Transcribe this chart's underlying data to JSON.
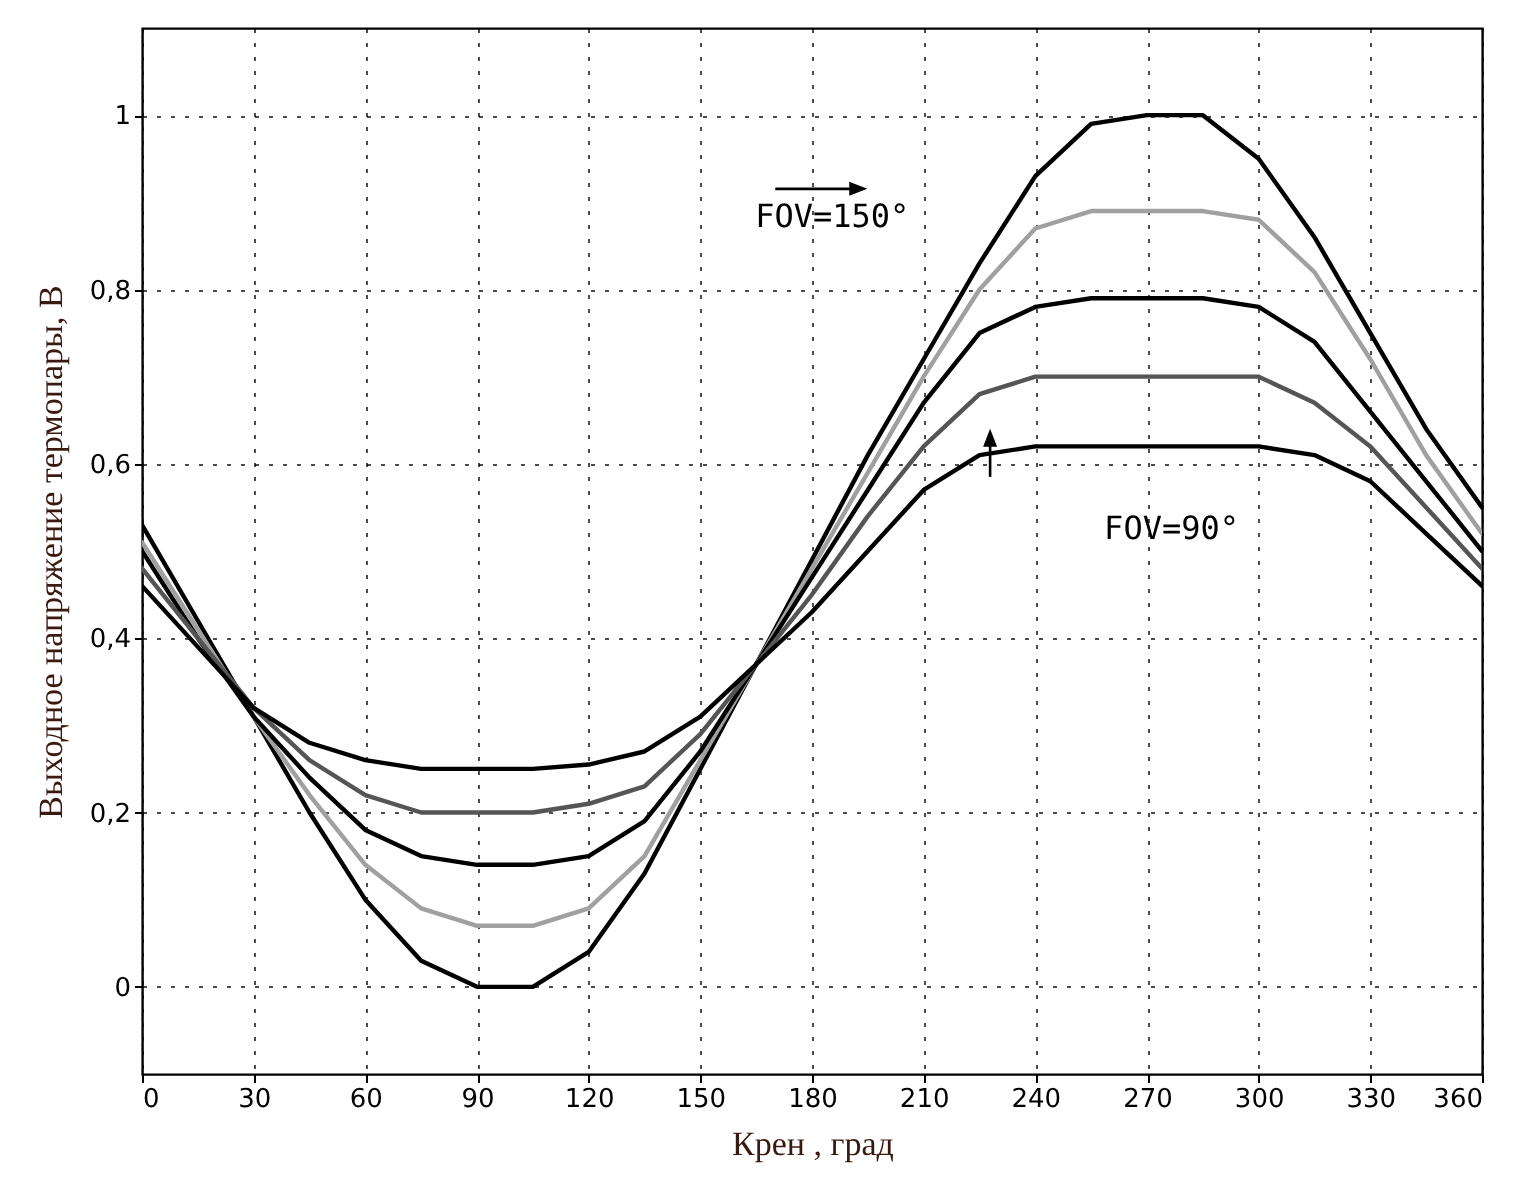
{
  "chart_data": {
    "type": "line",
    "xlabel": "Крен , град",
    "ylabel": "Выходное напряжение термопары, В",
    "x": [
      0,
      15,
      30,
      45,
      60,
      75,
      90,
      105,
      120,
      135,
      150,
      165,
      180,
      195,
      210,
      225,
      240,
      255,
      270,
      285,
      300,
      315,
      330,
      345,
      360
    ],
    "series": [
      {
        "color": "#000000",
        "values": [
          0.53,
          0.42,
          0.31,
          0.2,
          0.1,
          0.03,
          0.0,
          0.0,
          0.04,
          0.13,
          0.25,
          0.37,
          0.49,
          0.61,
          0.72,
          0.83,
          0.93,
          0.99,
          1.0,
          1.0,
          0.95,
          0.86,
          0.75,
          0.64,
          0.55
        ]
      },
      {
        "color": "#a0a0a0",
        "values": [
          0.51,
          0.41,
          0.31,
          0.22,
          0.14,
          0.09,
          0.07,
          0.07,
          0.09,
          0.15,
          0.26,
          0.37,
          0.48,
          0.59,
          0.7,
          0.8,
          0.87,
          0.89,
          0.89,
          0.89,
          0.88,
          0.82,
          0.72,
          0.61,
          0.52
        ]
      },
      {
        "color": "#000000",
        "values": [
          0.5,
          0.4,
          0.31,
          0.24,
          0.18,
          0.15,
          0.14,
          0.14,
          0.15,
          0.19,
          0.27,
          0.37,
          0.47,
          0.57,
          0.67,
          0.75,
          0.78,
          0.79,
          0.79,
          0.79,
          0.78,
          0.74,
          0.66,
          0.58,
          0.5
        ]
      },
      {
        "color": "#555555",
        "values": [
          0.48,
          0.4,
          0.32,
          0.26,
          0.22,
          0.2,
          0.2,
          0.2,
          0.21,
          0.23,
          0.29,
          0.37,
          0.45,
          0.54,
          0.62,
          0.68,
          0.7,
          0.7,
          0.7,
          0.7,
          0.7,
          0.67,
          0.62,
          0.55,
          0.48
        ]
      },
      {
        "color": "#000000",
        "values": [
          0.46,
          0.39,
          0.32,
          0.28,
          0.26,
          0.25,
          0.25,
          0.25,
          0.255,
          0.27,
          0.31,
          0.37,
          0.43,
          0.5,
          0.57,
          0.61,
          0.62,
          0.62,
          0.62,
          0.62,
          0.62,
          0.61,
          0.58,
          0.52,
          0.46
        ]
      }
    ],
    "annotations": [
      "FOV=150°",
      "FOV=90°"
    ],
    "xlim": [
      0,
      360
    ],
    "xticks": [
      0,
      30,
      60,
      90,
      120,
      150,
      180,
      210,
      240,
      270,
      300,
      330,
      360
    ],
    "ylim": [
      -0.1,
      1.1
    ],
    "yticks": [
      0,
      {
        "value": 0.2,
        "label": "0,2"
      },
      {
        "value": 0.4,
        "label": "0,4"
      },
      {
        "value": 0.6,
        "label": "0,6"
      },
      {
        "value": 0.8,
        "label": "0,8"
      },
      1
    ],
    "grid": true,
    "marker": "none",
    "line_style": "solid"
  }
}
